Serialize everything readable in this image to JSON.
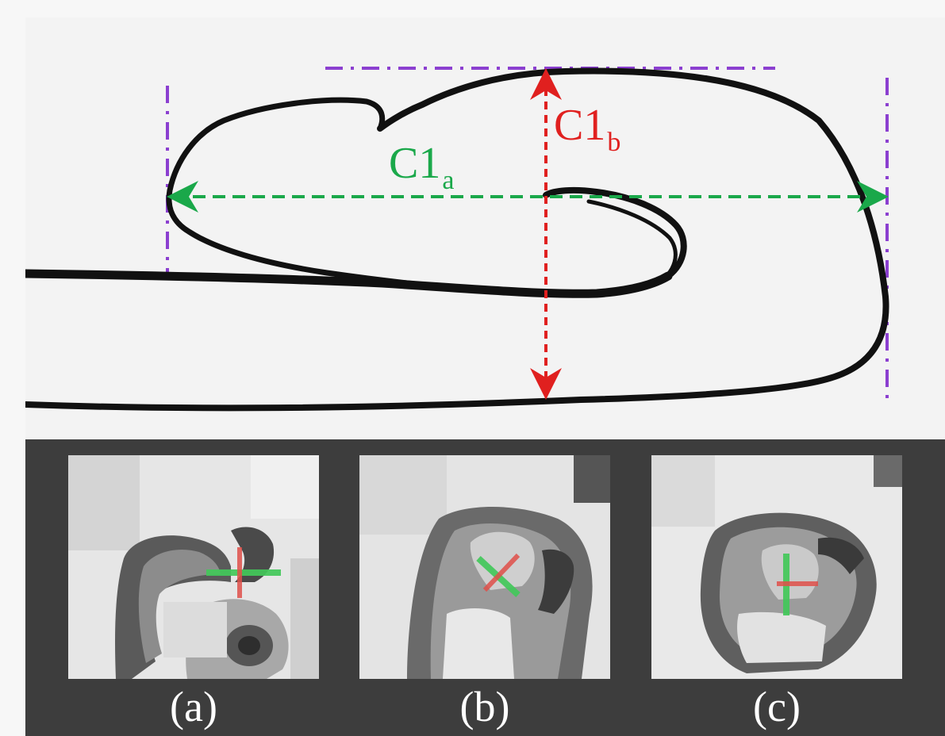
{
  "measurements": {
    "a": {
      "base": "C1",
      "subscript": "a",
      "color": "#1aa84a"
    },
    "b": {
      "base": "C1",
      "subscript": "b",
      "color": "#e0201f"
    }
  },
  "guide_color": "#8b3fd0",
  "outline_color": "#111111",
  "panels": [
    {
      "caption": "(a)",
      "long_axis_color": "#43c85a",
      "short_axis_color": "#e0504a"
    },
    {
      "caption": "(b)",
      "long_axis_color": "#43c85a",
      "short_axis_color": "#e0504a"
    },
    {
      "caption": "(c)",
      "long_axis_color": "#43c85a",
      "short_axis_color": "#e0504a"
    }
  ]
}
